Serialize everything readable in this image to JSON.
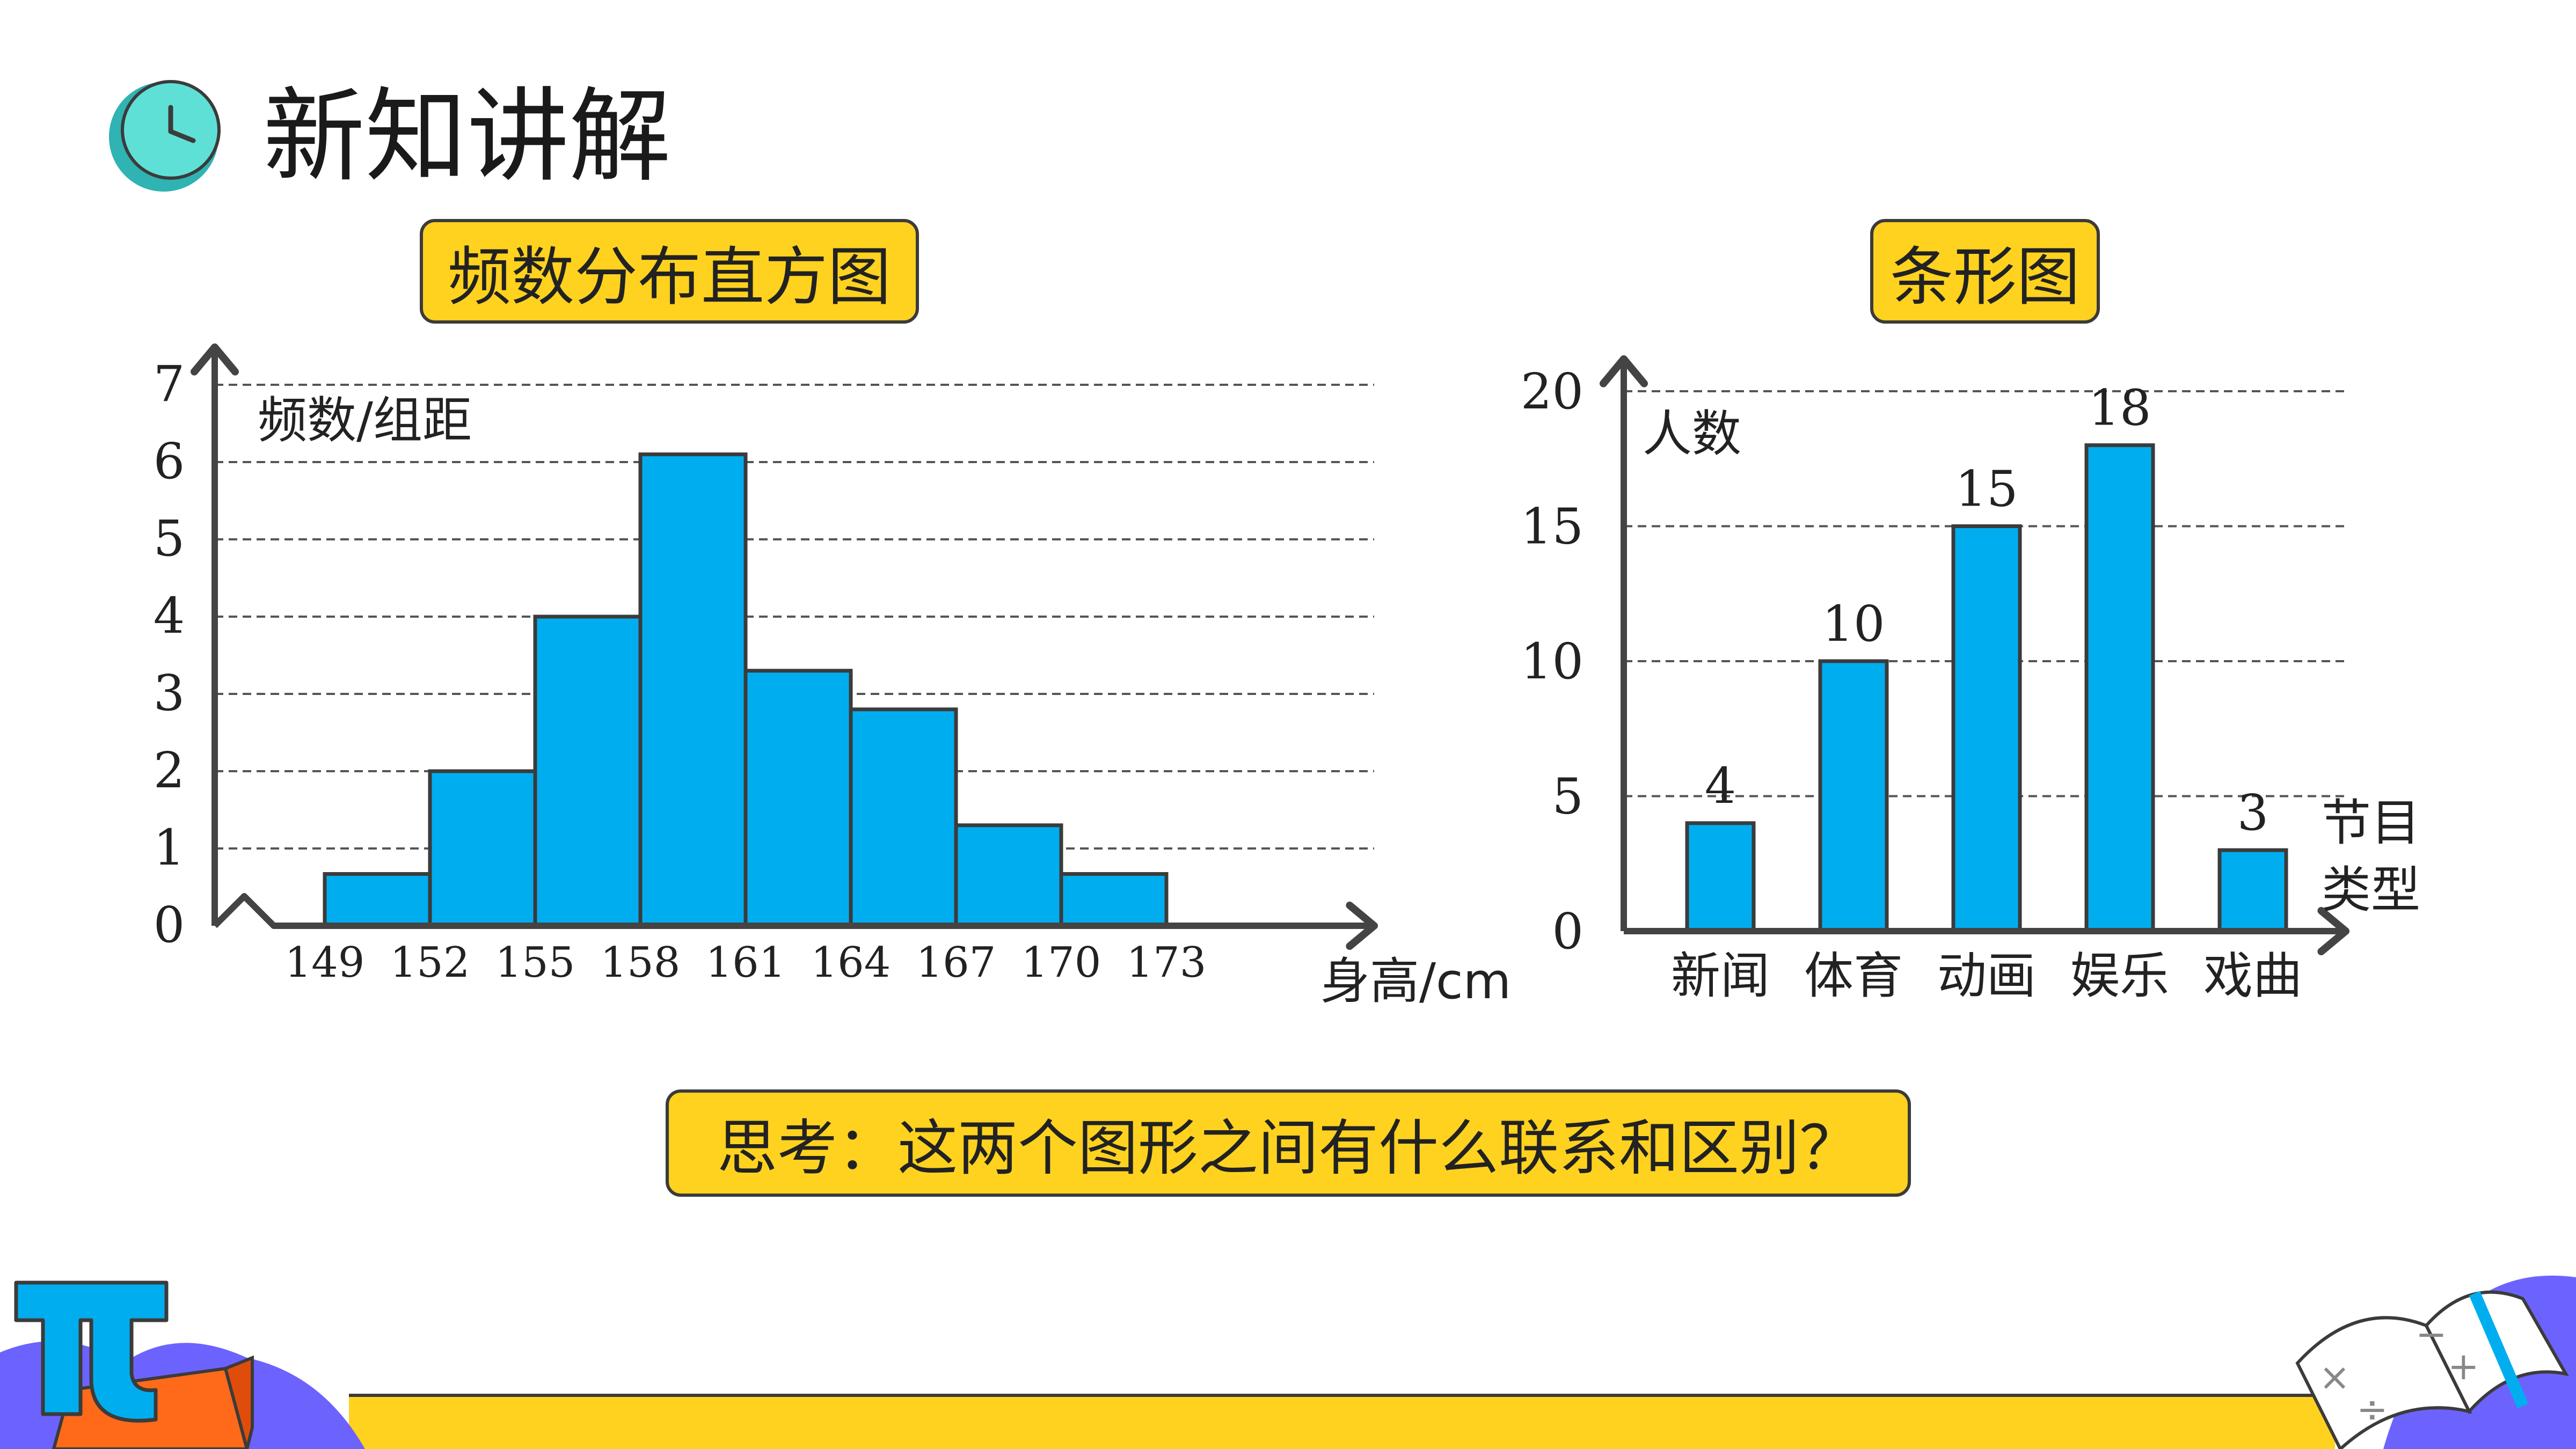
{
  "page": {
    "title": "新知讲解",
    "histogram_label": "频数分布直方图",
    "bar_chart_label": "条形图",
    "question": "思考：这两个图形之间有什么联系和区别？"
  },
  "colors": {
    "bar_fill": "#00AEEF",
    "bar_stroke": "#3b3b3b",
    "axis": "#444444",
    "grid": "#555555",
    "label_bg": "#FFD21F",
    "footer_yellow": "#FFD21F",
    "purple": "#6C63FF",
    "orange": "#FF6A1A",
    "teal": "#38C8C8"
  },
  "icons": [
    "clock-icon",
    "pi-icon",
    "math-book-icon"
  ],
  "chart_data": [
    {
      "type": "bar",
      "subtype": "histogram",
      "ylabel": "频数/组距",
      "xlabel": "身高/cm",
      "ylim": [
        0,
        7
      ],
      "yticks": [
        "0",
        "1",
        "2",
        "3",
        "4",
        "5",
        "6",
        "7"
      ],
      "bin_edges": [
        "149",
        "152",
        "155",
        "158",
        "161",
        "164",
        "167",
        "170",
        "173"
      ],
      "values": [
        0.67,
        2,
        4,
        6.1,
        3.3,
        2.8,
        1.3,
        0.67
      ],
      "grid": true,
      "axis_break": true
    },
    {
      "type": "bar",
      "ylabel": "人数",
      "xlabel": "节目\n类型",
      "xlabel_lines": [
        "节目",
        "类型"
      ],
      "ylim": [
        0,
        20
      ],
      "yticks": [
        "0",
        "5",
        "10",
        "15",
        "20"
      ],
      "categories": [
        "新闻",
        "体育",
        "动画",
        "娱乐",
        "戏曲"
      ],
      "values": [
        4,
        10,
        15,
        18,
        3
      ],
      "data_labels": [
        "4",
        "10",
        "15",
        "18",
        "3"
      ],
      "grid": true
    }
  ]
}
